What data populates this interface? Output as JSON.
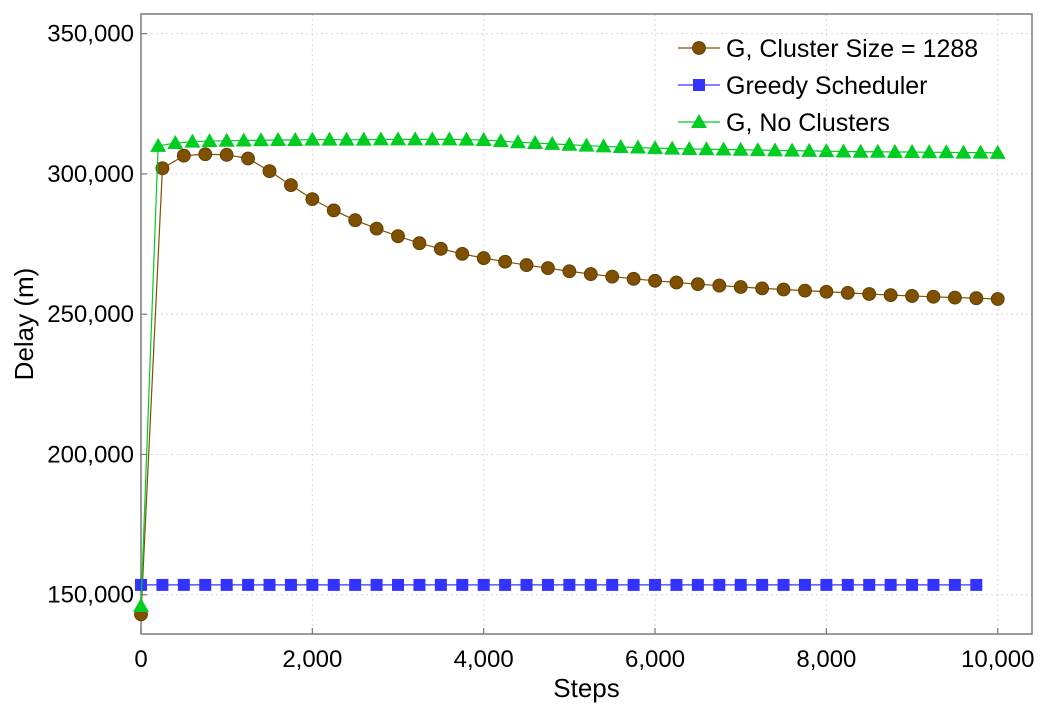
{
  "chart_data": {
    "type": "line",
    "title": "",
    "xlabel": "Steps",
    "ylabel": "Delay (m)",
    "xlim": [
      0,
      10400
    ],
    "ylim": [
      136000,
      357000
    ],
    "xticks": [
      0,
      2000,
      4000,
      6000,
      8000,
      10000
    ],
    "xtick_labels": [
      "0",
      "2,000",
      "4,000",
      "6,000",
      "8,000",
      "10,000"
    ],
    "yticks": [
      150000,
      200000,
      250000,
      300000,
      350000
    ],
    "ytick_labels": [
      "150,000",
      "200,000",
      "250,000",
      "300,000",
      "350,000"
    ],
    "grid": true,
    "legend_position": "top-right",
    "series": [
      {
        "name": "G, Cluster Size  = 1288",
        "color": "#7f5000",
        "marker": "circle",
        "x": [
          0,
          250,
          500,
          750,
          1000,
          1250,
          1500,
          1750,
          2000,
          2250,
          2500,
          2750,
          3000,
          3250,
          3500,
          3750,
          4000,
          4250,
          4500,
          4750,
          5000,
          5250,
          5500,
          5750,
          6000,
          6250,
          6500,
          6750,
          7000,
          7250,
          7500,
          7750,
          8000,
          8250,
          8500,
          8750,
          9000,
          9250,
          9500,
          9750,
          10000
        ],
        "y": [
          143000,
          302000,
          306500,
          307000,
          306800,
          305500,
          301000,
          296000,
          291000,
          287000,
          283500,
          280500,
          277800,
          275300,
          273300,
          271500,
          270000,
          268700,
          267500,
          266400,
          265300,
          264300,
          263400,
          262600,
          261900,
          261300,
          260700,
          260200,
          259700,
          259200,
          258800,
          258400,
          258000,
          257600,
          257200,
          256800,
          256500,
          256200,
          255900,
          255700,
          255400
        ]
      },
      {
        "name": "Greedy Scheduler",
        "color": "#3333ff",
        "marker": "square",
        "x": [
          0,
          250,
          500,
          750,
          1000,
          1250,
          1500,
          1750,
          2000,
          2250,
          2500,
          2750,
          3000,
          3250,
          3500,
          3750,
          4000,
          4250,
          4500,
          4750,
          5000,
          5250,
          5500,
          5750,
          6000,
          6250,
          6500,
          6750,
          7000,
          7250,
          7500,
          7750,
          8000,
          8250,
          8500,
          8750,
          9000,
          9250,
          9500,
          9750
        ],
        "y": [
          153500,
          153500,
          153500,
          153500,
          153500,
          153500,
          153500,
          153500,
          153500,
          153500,
          153500,
          153500,
          153500,
          153500,
          153500,
          153500,
          153500,
          153500,
          153500,
          153500,
          153500,
          153500,
          153500,
          153500,
          153500,
          153500,
          153500,
          153500,
          153500,
          153500,
          153500,
          153500,
          153500,
          153500,
          153500,
          153500,
          153500,
          153500,
          153500,
          153500
        ]
      },
      {
        "name": "G, No Clusters",
        "color": "#00cc22",
        "marker": "triangle",
        "x": [
          0,
          200,
          400,
          600,
          800,
          1000,
          1200,
          1400,
          1600,
          1800,
          2000,
          2200,
          2400,
          2600,
          2800,
          3000,
          3200,
          3400,
          3600,
          3800,
          4000,
          4200,
          4400,
          4600,
          4800,
          5000,
          5200,
          5400,
          5600,
          5800,
          6000,
          6200,
          6400,
          6600,
          6800,
          7000,
          7200,
          7400,
          7600,
          7800,
          8000,
          8200,
          8400,
          8600,
          8800,
          9000,
          9200,
          9400,
          9600,
          9800,
          10000
        ],
        "y": [
          146000,
          310000,
          311000,
          311500,
          311700,
          311800,
          311900,
          312000,
          312100,
          312100,
          312200,
          312200,
          312200,
          312200,
          312300,
          312300,
          312300,
          312300,
          312300,
          312200,
          312100,
          311700,
          311300,
          311000,
          310700,
          310400,
          310100,
          309800,
          309600,
          309400,
          309200,
          309000,
          308900,
          308800,
          308700,
          308600,
          308500,
          308400,
          308300,
          308200,
          308100,
          308000,
          307900,
          307900,
          307800,
          307800,
          307700,
          307700,
          307600,
          307600,
          307500
        ]
      }
    ]
  }
}
